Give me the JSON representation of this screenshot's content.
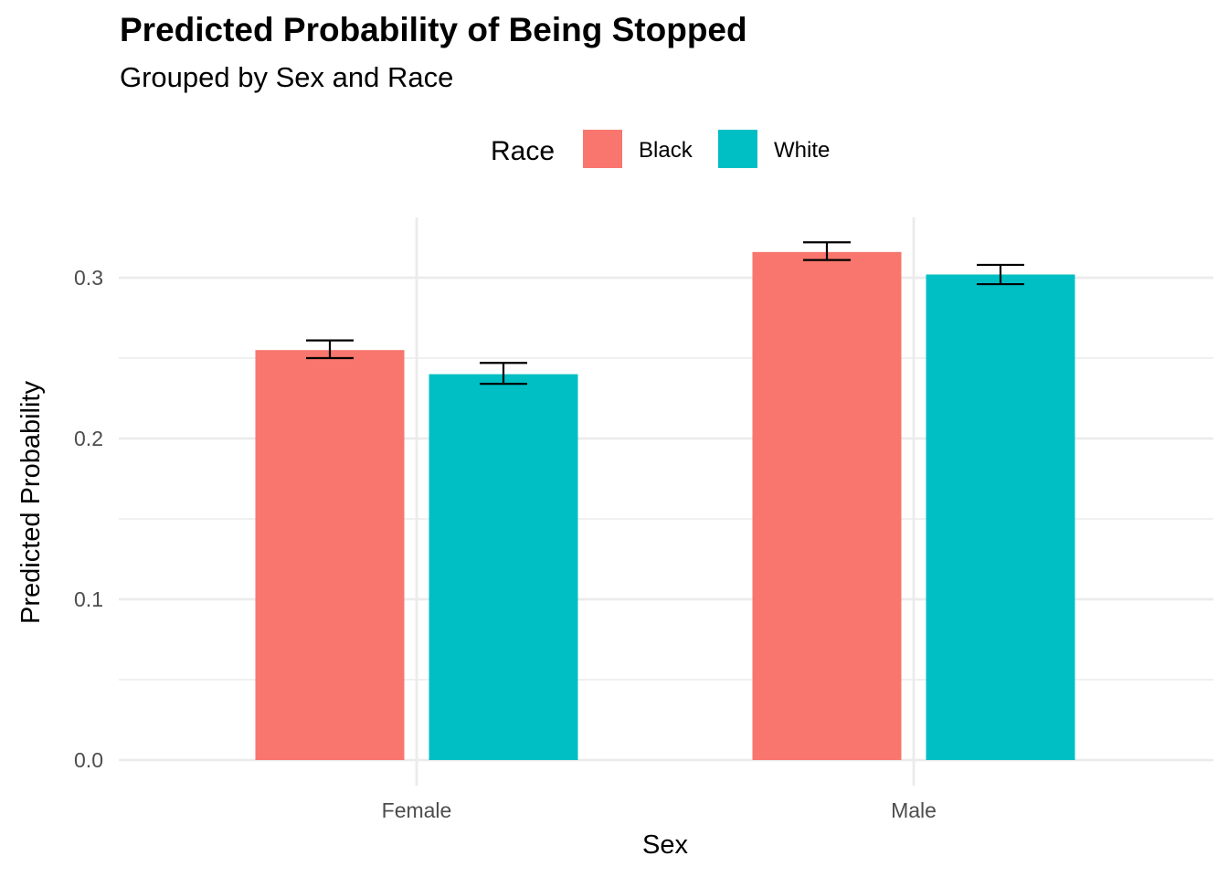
{
  "chart_data": {
    "type": "bar",
    "title": "Predicted Probability of Being Stopped",
    "subtitle": "Grouped by Sex and Race",
    "xlabel": "Sex",
    "ylabel": "Predicted Probability",
    "categories": [
      "Female",
      "Male"
    ],
    "ylim": [
      0,
      0.34
    ],
    "yticks": [
      0.0,
      0.1,
      0.2,
      0.3
    ],
    "ytick_labels": [
      "0.0",
      "0.1",
      "0.2",
      "0.3"
    ],
    "grid": true,
    "legend": {
      "title": "Race",
      "placement": "top"
    },
    "series": [
      {
        "name": "Black",
        "color": "#F8766D",
        "values": [
          0.255,
          0.316
        ],
        "error_low": [
          0.25,
          0.311
        ],
        "error_high": [
          0.261,
          0.322
        ]
      },
      {
        "name": "White",
        "color": "#00BFC4",
        "values": [
          0.24,
          0.302
        ],
        "error_low": [
          0.234,
          0.296
        ],
        "error_high": [
          0.247,
          0.308
        ]
      }
    ]
  }
}
